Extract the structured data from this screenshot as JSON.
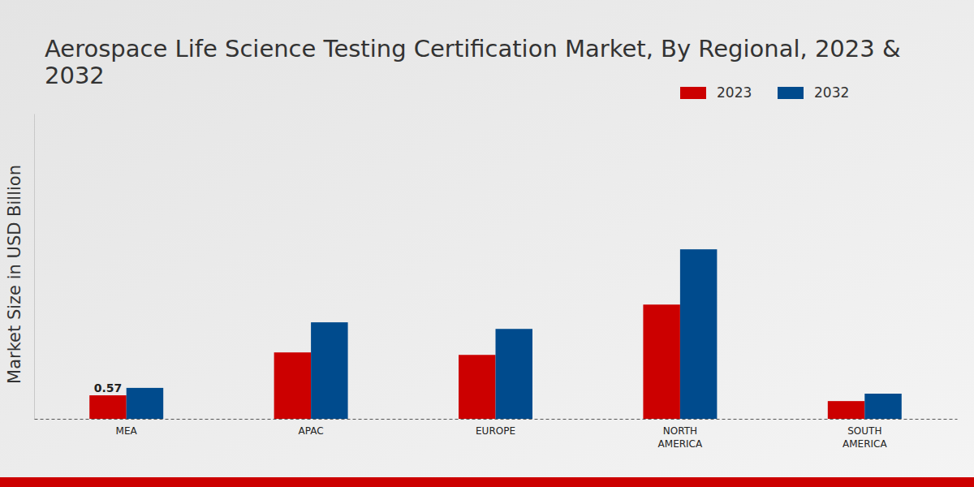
{
  "chart_data": {
    "type": "bar",
    "title": "Aerospace Life Science Testing Certification Market, By Regional, 2023 & 2032",
    "y_label": "Market Size in USD Billion",
    "categories": [
      "MEA",
      "APAC",
      "EUROPE",
      "NORTH AMERICA",
      "SOUTH AMERICA"
    ],
    "series": [
      {
        "name": "2023",
        "color": "#cc0000",
        "values": [
          0.57,
          1.61,
          1.55,
          2.77,
          0.43
        ],
        "value_labels": [
          "0.57",
          null,
          null,
          null,
          null
        ]
      },
      {
        "name": "2032",
        "color": "#004b8d",
        "values": [
          0.75,
          2.34,
          2.18,
          4.11,
          0.61
        ]
      }
    ],
    "ylim": [
      0,
      7.4
    ],
    "tick_labels": "x",
    "legend": "top-right",
    "grid": false
  }
}
